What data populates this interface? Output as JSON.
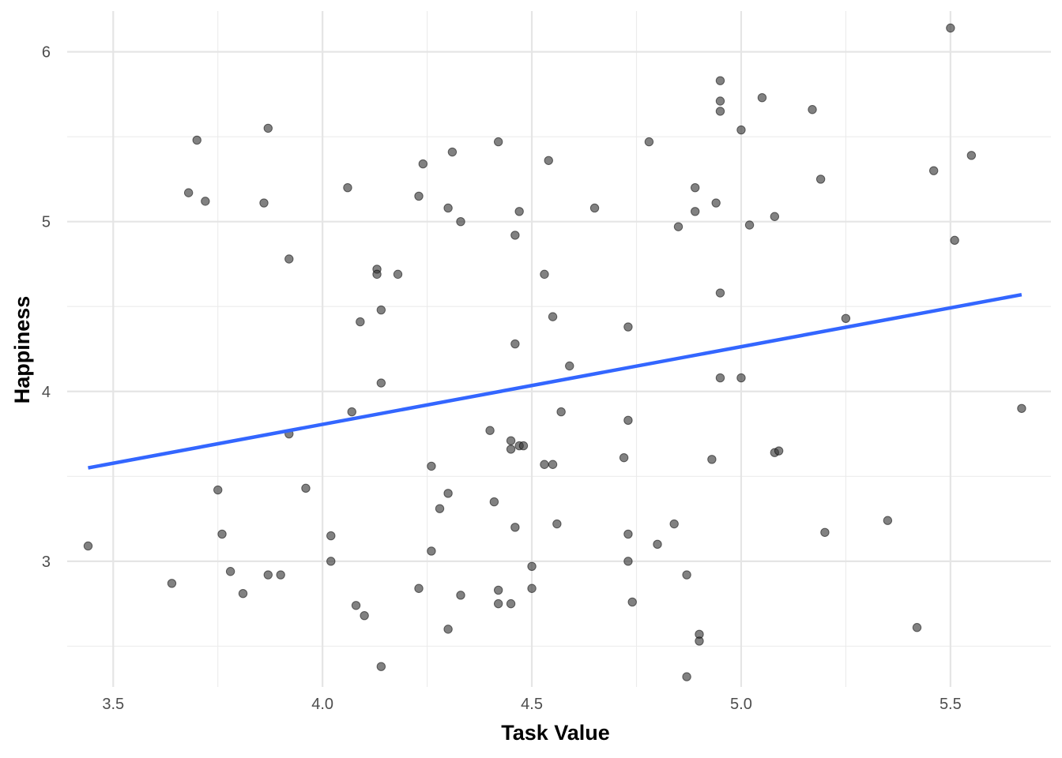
{
  "chart_data": {
    "type": "scatter",
    "xlabel": "Task Value",
    "ylabel": "Happiness",
    "xlim": [
      3.39,
      5.74
    ],
    "ylim": [
      2.26,
      6.24
    ],
    "x_ticks": [
      "3.5",
      "4.0",
      "4.5",
      "5.0",
      "5.5"
    ],
    "y_ticks": [
      "3",
      "4",
      "5",
      "6"
    ],
    "grid": true,
    "point_color": "#333333",
    "trend_color": "#3366FF",
    "trend_line": {
      "x": [
        3.44,
        5.67
      ],
      "y": [
        3.55,
        4.57
      ]
    },
    "points": [
      [
        3.44,
        3.09
      ],
      [
        3.64,
        2.87
      ],
      [
        3.68,
        5.17
      ],
      [
        3.7,
        5.48
      ],
      [
        3.72,
        5.12
      ],
      [
        3.75,
        3.42
      ],
      [
        3.76,
        3.16
      ],
      [
        3.78,
        2.94
      ],
      [
        3.81,
        2.81
      ],
      [
        3.86,
        5.11
      ],
      [
        3.87,
        5.55
      ],
      [
        3.87,
        2.92
      ],
      [
        3.9,
        2.92
      ],
      [
        3.92,
        4.78
      ],
      [
        3.92,
        3.75
      ],
      [
        3.96,
        3.43
      ],
      [
        4.02,
        3.15
      ],
      [
        4.02,
        3.0
      ],
      [
        4.06,
        5.2
      ],
      [
        4.07,
        3.88
      ],
      [
        4.08,
        2.74
      ],
      [
        4.09,
        4.41
      ],
      [
        4.1,
        2.68
      ],
      [
        4.13,
        4.72
      ],
      [
        4.13,
        4.69
      ],
      [
        4.14,
        4.48
      ],
      [
        4.14,
        4.05
      ],
      [
        4.14,
        2.38
      ],
      [
        4.18,
        4.69
      ],
      [
        4.23,
        5.15
      ],
      [
        4.23,
        2.84
      ],
      [
        4.24,
        5.34
      ],
      [
        4.26,
        3.56
      ],
      [
        4.26,
        3.06
      ],
      [
        4.28,
        3.31
      ],
      [
        4.3,
        5.08
      ],
      [
        4.3,
        3.4
      ],
      [
        4.3,
        2.6
      ],
      [
        4.31,
        5.41
      ],
      [
        4.33,
        5.0
      ],
      [
        4.33,
        2.8
      ],
      [
        4.4,
        3.77
      ],
      [
        4.41,
        3.35
      ],
      [
        4.42,
        5.47
      ],
      [
        4.42,
        2.83
      ],
      [
        4.42,
        2.75
      ],
      [
        4.45,
        3.71
      ],
      [
        4.45,
        3.66
      ],
      [
        4.45,
        2.75
      ],
      [
        4.46,
        4.92
      ],
      [
        4.46,
        4.28
      ],
      [
        4.46,
        3.2
      ],
      [
        4.47,
        5.06
      ],
      [
        4.47,
        3.68
      ],
      [
        4.48,
        3.68
      ],
      [
        4.5,
        2.97
      ],
      [
        4.5,
        2.84
      ],
      [
        4.53,
        4.69
      ],
      [
        4.53,
        3.57
      ],
      [
        4.54,
        5.36
      ],
      [
        4.55,
        3.57
      ],
      [
        4.55,
        4.44
      ],
      [
        4.56,
        3.22
      ],
      [
        4.57,
        3.88
      ],
      [
        4.59,
        4.15
      ],
      [
        4.65,
        5.08
      ],
      [
        4.72,
        3.61
      ],
      [
        4.73,
        4.38
      ],
      [
        4.73,
        3.83
      ],
      [
        4.73,
        3.16
      ],
      [
        4.73,
        3.0
      ],
      [
        4.74,
        2.76
      ],
      [
        4.78,
        5.47
      ],
      [
        4.8,
        3.1
      ],
      [
        4.84,
        3.22
      ],
      [
        4.85,
        4.97
      ],
      [
        4.87,
        2.92
      ],
      [
        4.87,
        2.32
      ],
      [
        4.89,
        5.2
      ],
      [
        4.89,
        5.06
      ],
      [
        4.9,
        2.57
      ],
      [
        4.9,
        2.53
      ],
      [
        4.93,
        3.6
      ],
      [
        4.94,
        5.11
      ],
      [
        4.95,
        5.83
      ],
      [
        4.95,
        5.71
      ],
      [
        4.95,
        5.65
      ],
      [
        4.95,
        4.58
      ],
      [
        4.95,
        4.08
      ],
      [
        5.0,
        5.54
      ],
      [
        5.0,
        4.08
      ],
      [
        5.02,
        4.98
      ],
      [
        5.05,
        5.73
      ],
      [
        5.08,
        5.03
      ],
      [
        5.08,
        3.64
      ],
      [
        5.09,
        3.65
      ],
      [
        5.17,
        5.66
      ],
      [
        5.19,
        5.25
      ],
      [
        5.2,
        3.17
      ],
      [
        5.25,
        4.43
      ],
      [
        5.35,
        3.24
      ],
      [
        5.42,
        2.61
      ],
      [
        5.46,
        5.3
      ],
      [
        5.5,
        6.14
      ],
      [
        5.51,
        4.89
      ],
      [
        5.55,
        5.39
      ],
      [
        5.67,
        3.9
      ]
    ]
  }
}
